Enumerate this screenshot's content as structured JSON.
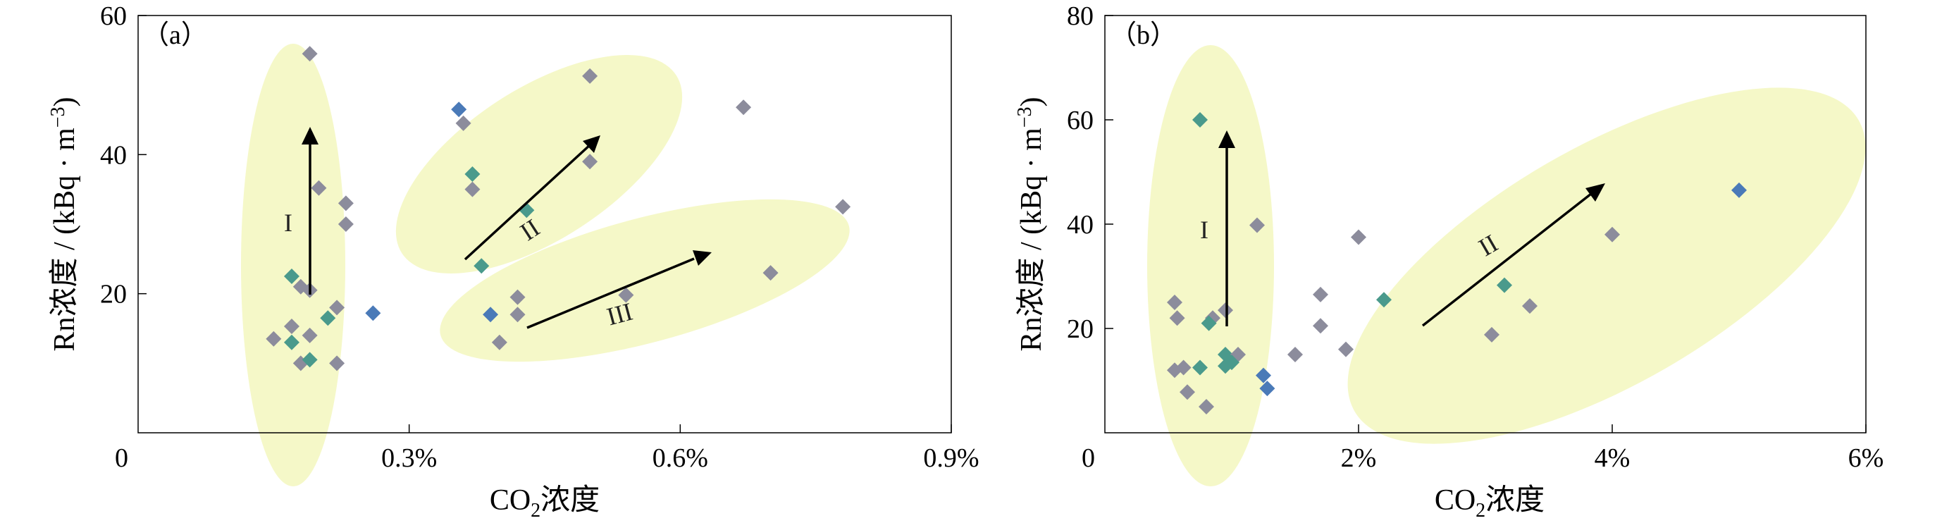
{
  "chart_data": [
    {
      "type": "scatter",
      "panel_label": "（a）",
      "xlabel": "CO₂浓度",
      "ylabel": "Rn浓度 / (kBq · m⁻³)",
      "xlim": [
        0,
        0.9
      ],
      "ylim": [
        0,
        60
      ],
      "x_unit": "%",
      "xticks": [
        0,
        0.3,
        0.6,
        0.9
      ],
      "xtick_labels": [
        "0",
        "0.3%",
        "0.6%",
        "0.9%"
      ],
      "yticks": [
        20,
        40,
        60
      ],
      "ytick_labels": [
        "20",
        "40",
        "60"
      ],
      "grid": false,
      "groups": [
        "I",
        "II",
        "III"
      ],
      "points": [
        {
          "x": 0.19,
          "y": 54.5,
          "color": "#8c8c9c"
        },
        {
          "x": 0.2,
          "y": 35.2,
          "color": "#8c8c9c"
        },
        {
          "x": 0.23,
          "y": 33.0,
          "color": "#8c8c9c"
        },
        {
          "x": 0.23,
          "y": 30.0,
          "color": "#8c8c9c"
        },
        {
          "x": 0.17,
          "y": 22.5,
          "color": "#4a9a8c"
        },
        {
          "x": 0.18,
          "y": 21.0,
          "color": "#8c8c9c"
        },
        {
          "x": 0.19,
          "y": 20.5,
          "color": "#8c8c9c"
        },
        {
          "x": 0.22,
          "y": 18.0,
          "color": "#8c8c9c"
        },
        {
          "x": 0.21,
          "y": 16.5,
          "color": "#4a9a8c"
        },
        {
          "x": 0.26,
          "y": 17.2,
          "color": "#4a7ab8"
        },
        {
          "x": 0.17,
          "y": 15.3,
          "color": "#8c8c9c"
        },
        {
          "x": 0.15,
          "y": 13.5,
          "color": "#8c8c9c"
        },
        {
          "x": 0.19,
          "y": 14.0,
          "color": "#8c8c9c"
        },
        {
          "x": 0.17,
          "y": 13.0,
          "color": "#4a9a8c"
        },
        {
          "x": 0.18,
          "y": 10.0,
          "color": "#8c8c9c"
        },
        {
          "x": 0.19,
          "y": 10.5,
          "color": "#4a9a8c"
        },
        {
          "x": 0.22,
          "y": 10.0,
          "color": "#8c8c9c"
        },
        {
          "x": 0.355,
          "y": 46.5,
          "color": "#4a7ab8"
        },
        {
          "x": 0.36,
          "y": 44.5,
          "color": "#8c8c9c"
        },
        {
          "x": 0.37,
          "y": 37.2,
          "color": "#4a9a8c"
        },
        {
          "x": 0.37,
          "y": 35.0,
          "color": "#8c8c9c"
        },
        {
          "x": 0.43,
          "y": 32.0,
          "color": "#4a9a8c"
        },
        {
          "x": 0.38,
          "y": 24.0,
          "color": "#4a9a8c"
        },
        {
          "x": 0.5,
          "y": 51.3,
          "color": "#8c8c9c"
        },
        {
          "x": 0.5,
          "y": 39.0,
          "color": "#8c8c9c"
        },
        {
          "x": 0.67,
          "y": 46.8,
          "color": "#8c8c9c"
        },
        {
          "x": 0.42,
          "y": 19.5,
          "color": "#8c8c9c"
        },
        {
          "x": 0.39,
          "y": 17.0,
          "color": "#4a7ab8"
        },
        {
          "x": 0.42,
          "y": 17.0,
          "color": "#8c8c9c"
        },
        {
          "x": 0.4,
          "y": 13.0,
          "color": "#8c8c9c"
        },
        {
          "x": 0.54,
          "y": 19.8,
          "color": "#8c8c9c"
        },
        {
          "x": 0.7,
          "y": 23.0,
          "color": "#8c8c9c"
        },
        {
          "x": 0.78,
          "y": 32.5,
          "color": "#8c8c9c"
        }
      ]
    },
    {
      "type": "scatter",
      "panel_label": "（b）",
      "xlabel": "CO₂浓度",
      "ylabel": "Rn浓度 / (kBq · m⁻³)",
      "xlim": [
        0,
        6
      ],
      "ylim": [
        0,
        80
      ],
      "x_unit": "%",
      "xticks": [
        0,
        2,
        4,
        6
      ],
      "xtick_labels": [
        "0",
        "2%",
        "4%",
        "6%"
      ],
      "yticks": [
        20,
        40,
        60,
        80
      ],
      "ytick_labels": [
        "20",
        "40",
        "60",
        "80"
      ],
      "grid": false,
      "groups": [
        "I",
        "II"
      ],
      "points": [
        {
          "x": 0.75,
          "y": 60.0,
          "color": "#4a9a8c"
        },
        {
          "x": 1.2,
          "y": 39.8,
          "color": "#8c8c9c"
        },
        {
          "x": 0.55,
          "y": 25.0,
          "color": "#8c8c9c"
        },
        {
          "x": 0.95,
          "y": 23.5,
          "color": "#8c8c9c"
        },
        {
          "x": 0.85,
          "y": 22.0,
          "color": "#8c8c9c"
        },
        {
          "x": 0.82,
          "y": 21.0,
          "color": "#4a9a8c"
        },
        {
          "x": 0.57,
          "y": 22.0,
          "color": "#8c8c9c"
        },
        {
          "x": 0.95,
          "y": 15.0,
          "color": "#4a9a8c"
        },
        {
          "x": 1.05,
          "y": 15.0,
          "color": "#8c8c9c"
        },
        {
          "x": 1.0,
          "y": 13.5,
          "color": "#4a9a8c"
        },
        {
          "x": 0.95,
          "y": 12.8,
          "color": "#4a9a8c"
        },
        {
          "x": 0.75,
          "y": 12.5,
          "color": "#4a9a8c"
        },
        {
          "x": 0.55,
          "y": 12.0,
          "color": "#8c8c9c"
        },
        {
          "x": 0.62,
          "y": 12.5,
          "color": "#8c8c9c"
        },
        {
          "x": 0.65,
          "y": 7.8,
          "color": "#8c8c9c"
        },
        {
          "x": 0.8,
          "y": 5.0,
          "color": "#8c8c9c"
        },
        {
          "x": 1.25,
          "y": 11.0,
          "color": "#4a7ab8"
        },
        {
          "x": 1.28,
          "y": 8.5,
          "color": "#4a7ab8"
        },
        {
          "x": 2.0,
          "y": 37.5,
          "color": "#8c8c9c"
        },
        {
          "x": 1.7,
          "y": 26.5,
          "color": "#8c8c9c"
        },
        {
          "x": 2.2,
          "y": 25.5,
          "color": "#4a9a8c"
        },
        {
          "x": 1.7,
          "y": 20.5,
          "color": "#8c8c9c"
        },
        {
          "x": 1.5,
          "y": 15.0,
          "color": "#8c8c9c"
        },
        {
          "x": 1.9,
          "y": 16.0,
          "color": "#8c8c9c"
        },
        {
          "x": 3.15,
          "y": 28.3,
          "color": "#4a9a8c"
        },
        {
          "x": 3.35,
          "y": 24.3,
          "color": "#8c8c9c"
        },
        {
          "x": 3.05,
          "y": 18.8,
          "color": "#8c8c9c"
        },
        {
          "x": 4.0,
          "y": 38.0,
          "color": "#8c8c9c"
        },
        {
          "x": 5.0,
          "y": 46.5,
          "color": "#4a7ab8"
        }
      ]
    }
  ]
}
